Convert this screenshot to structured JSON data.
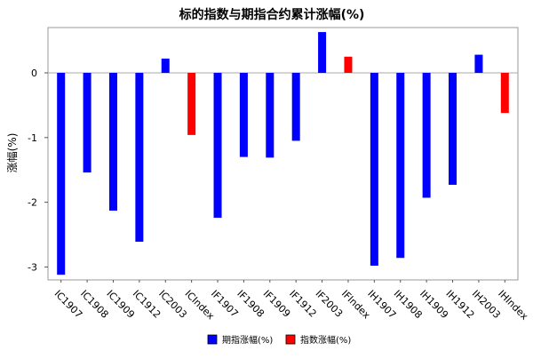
{
  "chart_data": {
    "type": "bar",
    "title": "标的指数与期指合约累计涨幅(%)",
    "xlabel": "",
    "ylabel": "涨幅(%)",
    "ylim": [
      -3.2,
      0.7
    ],
    "yticks": [
      -3,
      -2,
      -1,
      0
    ],
    "grid": false,
    "legend_position": "bottom",
    "categories": [
      "IC1907",
      "IC1908",
      "IC1909",
      "IC1912",
      "IC2003",
      "ICIndex",
      "IF1907",
      "IF1908",
      "IF1909",
      "IF1912",
      "IF2003",
      "IFIndex",
      "IH1907",
      "IH1908",
      "IH1909",
      "IH1912",
      "IH2003",
      "IHIndex"
    ],
    "values": [
      -3.12,
      -1.54,
      -2.13,
      -2.61,
      0.22,
      -0.96,
      -2.24,
      -1.3,
      -1.31,
      -1.05,
      0.63,
      0.25,
      -2.98,
      -2.86,
      -1.93,
      -1.73,
      0.28,
      -0.62
    ],
    "series": [
      {
        "name": "期指涨幅(%)",
        "color": "#0000ff"
      },
      {
        "name": "指数涨幅(%)",
        "color": "#ff0000"
      }
    ],
    "bar_series": [
      0,
      0,
      0,
      0,
      0,
      1,
      0,
      0,
      0,
      0,
      0,
      1,
      0,
      0,
      0,
      0,
      0,
      1
    ]
  }
}
